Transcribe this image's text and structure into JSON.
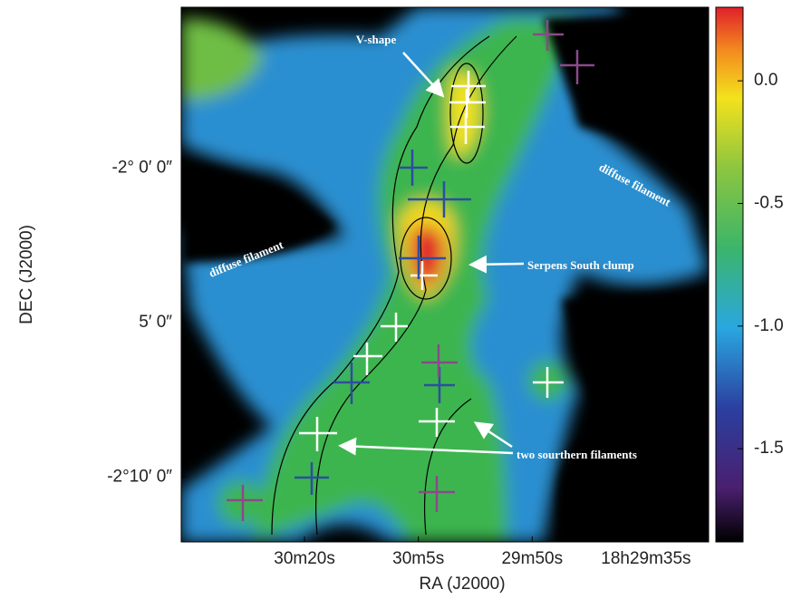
{
  "chart_data": {
    "type": "image",
    "xlabel": "RA (J2000)",
    "ylabel": "DEC (J2000)",
    "xlim": [
      1836.25,
      1766.75
    ],
    "xticks": [
      {
        "value": 1820,
        "label": "30m20s"
      },
      {
        "value": 1805,
        "label": "30m5s"
      },
      {
        "value": 1790,
        "label": "29m50s"
      },
      {
        "value": 1775,
        "label": "18h29m35s"
      }
    ],
    "ylim": [
      -132.1,
      -114.8
    ],
    "yticks": [
      {
        "value": -120,
        "label": "-2° 0′ 0″"
      },
      {
        "value": -125,
        "label": "5′ 0″"
      },
      {
        "value": -130,
        "label": "-2°10′ 0″"
      }
    ],
    "colorbar": {
      "lim": [
        -1.88,
        0.3
      ],
      "ticks": [
        {
          "value": 0,
          "label": "0.0"
        },
        -0.5,
        {
          "value": -1,
          "label": "-1.0"
        },
        -1.5
      ]
    },
    "annotations": [
      "V-shape",
      "diffuse filament",
      "diffuse filament",
      "Serpens South clump",
      "two sourthern filaments"
    ]
  }
}
